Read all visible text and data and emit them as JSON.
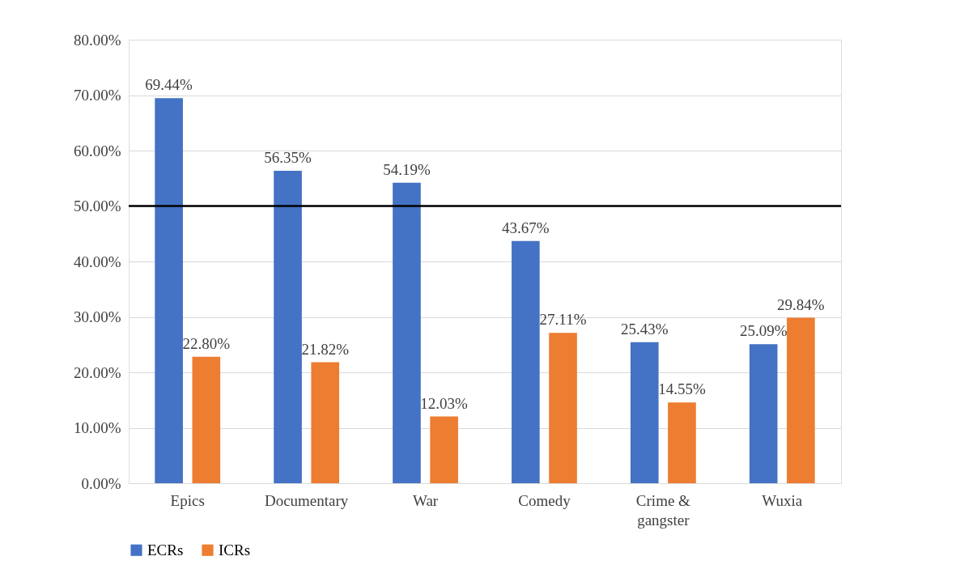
{
  "chart_data": {
    "type": "bar",
    "categories": [
      "Epics",
      "Documentary",
      "War",
      "Comedy",
      "Crime & gangster",
      "Wuxia"
    ],
    "series": [
      {
        "name": "ECRs",
        "color": "#4472c4",
        "values": [
          69.44,
          56.35,
          54.19,
          43.67,
          25.43,
          25.09
        ],
        "value_labels": [
          "69.44%",
          "56.35%",
          "54.19%",
          "43.67%",
          "25.43%",
          "25.09%"
        ]
      },
      {
        "name": "ICRs",
        "color": "#ed7d31",
        "values": [
          22.8,
          21.82,
          12.03,
          27.11,
          14.55,
          29.84
        ],
        "value_labels": [
          "22.80%",
          "21.82%",
          "12.03%",
          "27.11%",
          "14.55%",
          "29.84%"
        ]
      }
    ],
    "ylim": [
      0,
      80
    ],
    "yticks": [
      {
        "value": 0,
        "label": "0.00%"
      },
      {
        "value": 10,
        "label": "10.00%"
      },
      {
        "value": 20,
        "label": "20.00%"
      },
      {
        "value": 30,
        "label": "30.00%"
      },
      {
        "value": 40,
        "label": "40.00%"
      },
      {
        "value": 50,
        "label": "50.00%"
      },
      {
        "value": 60,
        "label": "60.00%"
      },
      {
        "value": 70,
        "label": "70.00%"
      },
      {
        "value": 80,
        "label": "80.00%"
      }
    ],
    "ref_lines": [
      {
        "axis": "y",
        "value": 50,
        "label": null,
        "color": "#000000"
      }
    ],
    "grid": "y",
    "legend": "bottom"
  }
}
